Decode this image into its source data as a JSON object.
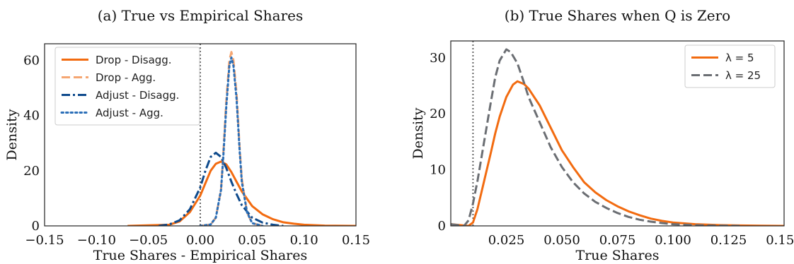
{
  "chart_data": [
    {
      "type": "line",
      "title": "(a) True vs Empirical Shares",
      "xlabel": "True Shares - Empirical Shares",
      "ylabel": "Density",
      "xlim": [
        -0.15,
        0.15
      ],
      "ylim": [
        0,
        66
      ],
      "xticks": [
        -0.15,
        -0.1,
        -0.05,
        0.0,
        0.05,
        0.1,
        0.15
      ],
      "xtick_labels": [
        "−0.15",
        "−0.10",
        "−0.05",
        "0.00",
        "0.05",
        "0.10",
        "0.15"
      ],
      "yticks": [
        0,
        20,
        40,
        60
      ],
      "ytick_labels": [
        "0",
        "20",
        "40",
        "60"
      ],
      "vline": 0.0,
      "grid": false,
      "legend_position": "top-left",
      "series": [
        {
          "name": "Drop - Disagg.",
          "color": "#f26b10",
          "dash": "solid",
          "x": [
            -0.07,
            -0.03,
            -0.02,
            -0.01,
            0.0,
            0.005,
            0.01,
            0.015,
            0.02,
            0.025,
            0.03,
            0.035,
            0.04,
            0.05,
            0.06,
            0.07,
            0.08,
            0.09,
            0.1,
            0.12,
            0.15
          ],
          "y": [
            0,
            0.4,
            1.6,
            5,
            11,
            15.5,
            20,
            22.5,
            23.3,
            22.3,
            19.5,
            16,
            12.5,
            7.2,
            4.2,
            2.4,
            1.3,
            0.8,
            0.4,
            0.1,
            0
          ]
        },
        {
          "name": "Drop - Agg.",
          "color": "#f5a672",
          "dash": "dashed",
          "x": [
            0.0,
            0.01,
            0.015,
            0.02,
            0.022,
            0.025,
            0.028,
            0.03,
            0.032,
            0.035,
            0.038,
            0.04,
            0.045,
            0.05,
            0.06
          ],
          "y": [
            0,
            0.5,
            3,
            13,
            25,
            45,
            60,
            63,
            60,
            48,
            28,
            17,
            5,
            1,
            0
          ]
        },
        {
          "name": "Adjust - Disagg.",
          "color": "#0e4a8c",
          "dash": "dashdot",
          "x": [
            -0.04,
            -0.03,
            -0.02,
            -0.01,
            0.0,
            0.005,
            0.01,
            0.015,
            0.02,
            0.025,
            0.03,
            0.035,
            0.04,
            0.05,
            0.06,
            0.07,
            0.08
          ],
          "y": [
            0,
            0.5,
            2,
            6,
            14,
            20,
            25,
            26.5,
            25,
            21,
            16,
            11.5,
            7.5,
            3,
            1.2,
            0.4,
            0
          ]
        },
        {
          "name": "Adjust - Agg.",
          "color": "#2b6fb8",
          "dash": "dotted",
          "x": [
            0.0,
            0.01,
            0.015,
            0.02,
            0.022,
            0.025,
            0.028,
            0.03,
            0.032,
            0.035,
            0.038,
            0.04,
            0.045,
            0.05,
            0.06
          ],
          "y": [
            0,
            0.5,
            3,
            13,
            24,
            43,
            58,
            61,
            58,
            46,
            27,
            16,
            5,
            1,
            0
          ]
        }
      ]
    },
    {
      "type": "line",
      "title": "(b) True Shares when Q is Zero",
      "xlabel": "True Shares",
      "ylabel": "Density",
      "xlim": [
        0.0,
        0.15
      ],
      "ylim": [
        0,
        33
      ],
      "xticks": [
        0.025,
        0.05,
        0.075,
        0.1,
        0.125,
        0.15
      ],
      "xtick_labels": [
        "0.025",
        "0.050",
        "0.075",
        "0.100",
        "0.125",
        "0.150"
      ],
      "yticks": [
        0,
        10,
        20,
        30
      ],
      "ytick_labels": [
        "0",
        "10",
        "20",
        "30"
      ],
      "vline": 0.01,
      "grid": false,
      "legend_position": "top-right",
      "series": [
        {
          "name": "λ = 5",
          "color": "#f26b10",
          "dash": "solid",
          "x": [
            0.0,
            0.008,
            0.01,
            0.012,
            0.015,
            0.018,
            0.02,
            0.022,
            0.025,
            0.028,
            0.03,
            0.033,
            0.035,
            0.04,
            0.045,
            0.05,
            0.055,
            0.06,
            0.065,
            0.07,
            0.075,
            0.08,
            0.085,
            0.09,
            0.095,
            0.1,
            0.11,
            0.12,
            0.13,
            0.14,
            0.15
          ],
          "y": [
            0.3,
            0,
            0.6,
            3,
            8,
            13,
            16.5,
            19.5,
            23,
            25.2,
            25.8,
            25.3,
            24.5,
            21.5,
            17.5,
            13.5,
            10.5,
            7.8,
            6,
            4.6,
            3.5,
            2.6,
            1.9,
            1.3,
            0.9,
            0.6,
            0.3,
            0.15,
            0.08,
            0.03,
            0
          ]
        },
        {
          "name": "λ = 25",
          "color": "#6b6e73",
          "dash": "dashed",
          "x": [
            0.0,
            0.006,
            0.008,
            0.01,
            0.012,
            0.015,
            0.018,
            0.02,
            0.022,
            0.025,
            0.027,
            0.03,
            0.033,
            0.035,
            0.04,
            0.045,
            0.05,
            0.055,
            0.06,
            0.065,
            0.07,
            0.075,
            0.08,
            0.085,
            0.09,
            0.095,
            0.1,
            0.11,
            0.12,
            0.13
          ],
          "y": [
            0.3,
            0,
            1,
            4,
            8,
            15,
            22,
            26.5,
            29.5,
            31.5,
            31,
            29,
            25.5,
            23,
            18.5,
            14,
            10.5,
            7.8,
            5.8,
            4.3,
            3.2,
            2.3,
            1.6,
            1.1,
            0.75,
            0.5,
            0.3,
            0.12,
            0.05,
            0
          ]
        }
      ]
    }
  ]
}
